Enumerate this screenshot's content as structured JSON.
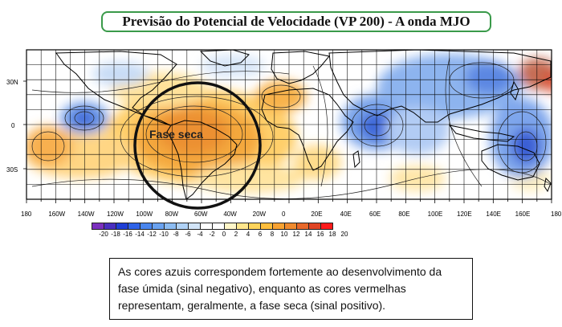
{
  "title": "Previsão do Potencial de Velocidade (VP 200) - A onda MJO",
  "map": {
    "annotation": "Fase seca",
    "lat_labels": [
      "30N",
      "0",
      "30S"
    ],
    "lon_labels": [
      "180",
      "160W",
      "140W",
      "120W",
      "100W",
      "80W",
      "60W",
      "40W",
      "20W",
      "0",
      "20E",
      "40E",
      "60E",
      "80E",
      "100E",
      "120E",
      "140E",
      "160E",
      "180"
    ]
  },
  "colorbar": {
    "levels": [
      "-20",
      "-18",
      "-16",
      "-14",
      "-12",
      "-10",
      "-8",
      "-6",
      "-4",
      "-2",
      "0",
      "2",
      "4",
      "6",
      "8",
      "10",
      "12",
      "14",
      "16",
      "18",
      "20"
    ],
    "colors": [
      "#7b2fbe",
      "#4a2fc0",
      "#1f3fd6",
      "#2f63e8",
      "#4a86ee",
      "#6aa2f0",
      "#8cbcf2",
      "#b0d2f6",
      "#d2e4f8",
      "#ffffff",
      "#ffffff",
      "#fff6c8",
      "#ffe68c",
      "#ffd45a",
      "#ffbe3c",
      "#f8a232",
      "#f08a2e",
      "#e8682a",
      "#e04424",
      "#ff1a1a"
    ]
  },
  "caption": "As cores azuis correspondem fortemente ao desenvolvimento da fase úmida (sinal negativo), enquanto as cores vermelhas representam, geralmente, a fase seca (sinal positivo)."
}
